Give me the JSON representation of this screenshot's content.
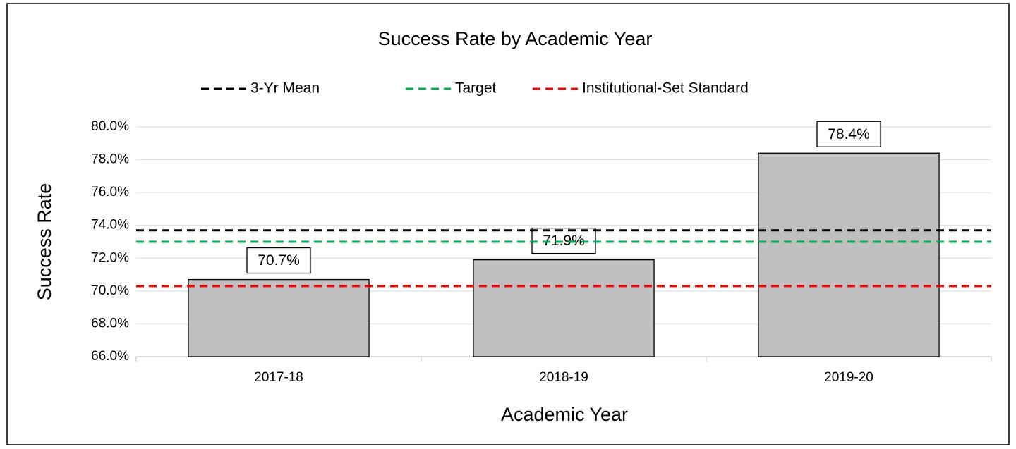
{
  "chart_data": {
    "type": "bar",
    "title": "Success Rate by Academic Year",
    "x_label": "Academic Year",
    "y_label": "Success Rate",
    "categories": [
      "2017-18",
      "2018-19",
      "2019-20"
    ],
    "values": [
      70.7,
      71.9,
      78.4
    ],
    "value_labels": [
      "70.7%",
      "71.9%",
      "78.4%"
    ],
    "color": "#bfbfbf",
    "ylim": [
      66,
      80
    ],
    "yticks": [
      {
        "value": 66,
        "label": "66.0%"
      },
      {
        "value": 68,
        "label": "68.0%"
      },
      {
        "value": 70,
        "label": "70.0%"
      },
      {
        "value": 72,
        "label": "72.0%"
      },
      {
        "value": 74,
        "label": "74.0%"
      },
      {
        "value": 76,
        "label": "76.0%"
      },
      {
        "value": 78,
        "label": "78.0%"
      },
      {
        "value": 80,
        "label": "80.0%"
      }
    ],
    "grid": true,
    "reference_lines": [
      {
        "name": "3-Yr Mean",
        "value": 73.7,
        "color": "#000000"
      },
      {
        "name": "Target",
        "value": 73.0,
        "color": "#00b050"
      },
      {
        "name": "Institutional-Set Standard",
        "value": 70.3,
        "color": "#ff0000"
      }
    ],
    "legend": "top"
  }
}
